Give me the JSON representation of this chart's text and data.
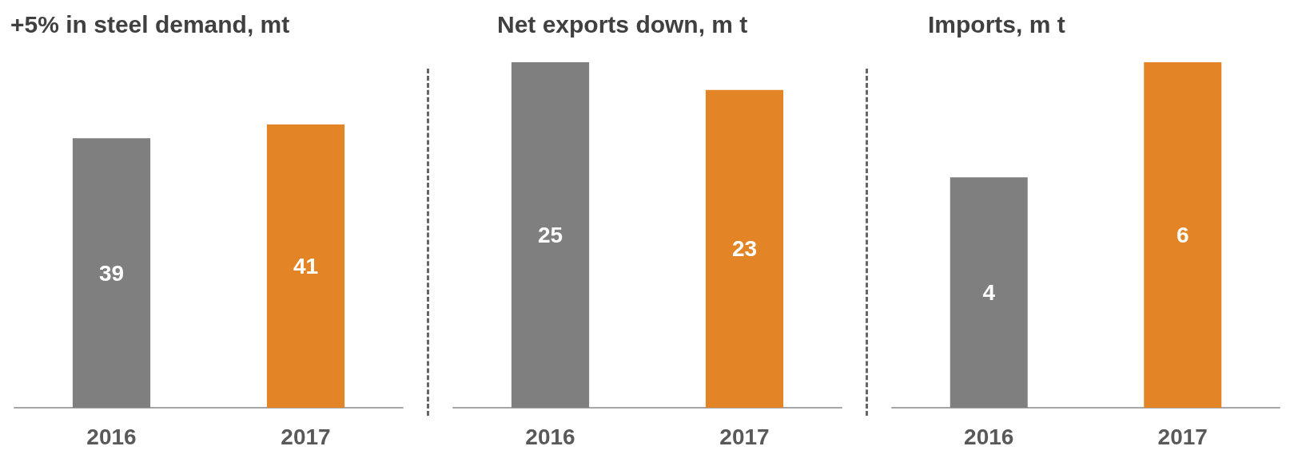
{
  "chart_data": [
    {
      "type": "bar",
      "title": "+5% in steel demand, mt",
      "categories": [
        "2016",
        "2017"
      ],
      "values": [
        39,
        41
      ],
      "colors": [
        "#7f7f7f",
        "#e38526"
      ],
      "data_labels": true
    },
    {
      "type": "bar",
      "title": "Net exports down, m t",
      "categories": [
        "2016",
        "2017"
      ],
      "values": [
        25,
        23
      ],
      "colors": [
        "#7f7f7f",
        "#e38526"
      ],
      "data_labels": true
    },
    {
      "type": "bar",
      "title": "Imports, m t",
      "categories": [
        "2016",
        "2017"
      ],
      "values": [
        4,
        6
      ],
      "colors": [
        "#7f7f7f",
        "#e38526"
      ],
      "data_labels": true
    }
  ]
}
